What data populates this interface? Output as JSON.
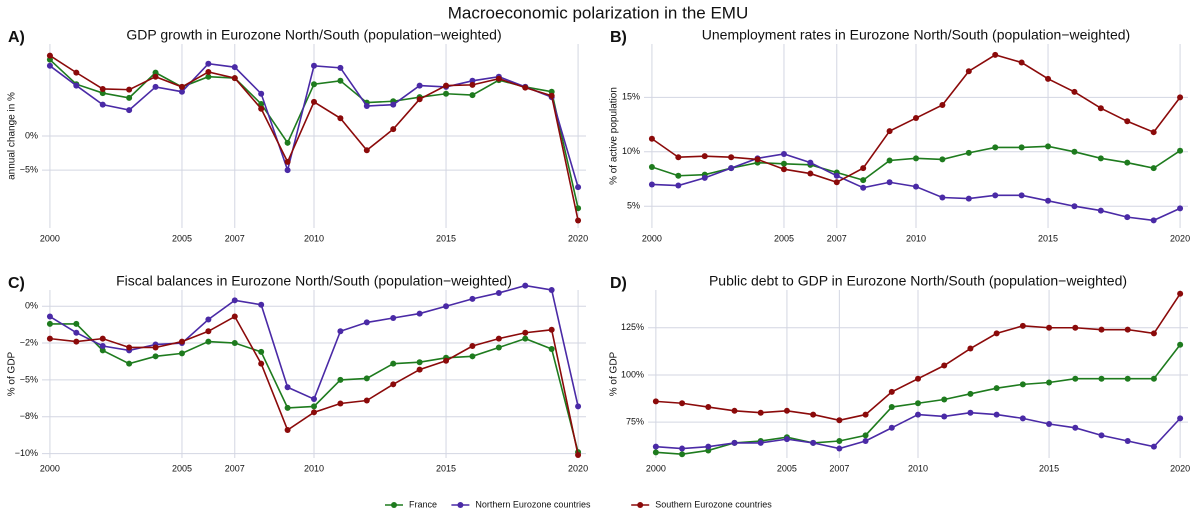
{
  "title": "Macroeconomic polarization in the EMU",
  "chart_data": [
    {
      "type": "line",
      "panel_label": "A)",
      "title": "GDP growth in Eurozone North/South (population−weighted)",
      "ylabel": "annual change in %",
      "x": [
        2000,
        2001,
        2002,
        2003,
        2004,
        2005,
        2006,
        2007,
        2008,
        2009,
        2010,
        2011,
        2012,
        2013,
        2014,
        2015,
        2016,
        2017,
        2018,
        2019,
        2020
      ],
      "xlim": [
        1999.7,
        2020.3
      ],
      "xticks": [
        2000,
        2005,
        2007,
        2010,
        2015,
        2020
      ],
      "ylim": [
        -13.5,
        13.5
      ],
      "yticks": [
        {
          "value": 0,
          "label": "0%"
        },
        {
          "value": -5,
          "label": "−5%"
        }
      ],
      "grid": true,
      "series": [
        {
          "name": "France",
          "color": "#1e7b1e",
          "values": [
            11.2,
            7.6,
            6.3,
            5.6,
            9.3,
            7.2,
            8.7,
            8.5,
            4.7,
            -1.0,
            7.6,
            8.1,
            4.9,
            5.1,
            5.7,
            6.2,
            6.0,
            8.2,
            7.2,
            6.5,
            -10.6
          ]
        },
        {
          "name": "Northern Eurozone countries",
          "color": "#4a2aa6",
          "values": [
            10.3,
            7.4,
            4.6,
            3.8,
            7.2,
            6.5,
            10.6,
            10.1,
            6.2,
            -5.0,
            10.3,
            10.0,
            4.4,
            4.6,
            7.4,
            7.2,
            8.1,
            8.7,
            7.2,
            5.7,
            -7.5
          ]
        },
        {
          "name": "Southern Eurozone countries",
          "color": "#8b0a0a",
          "values": [
            11.8,
            9.3,
            6.9,
            6.8,
            8.7,
            7.2,
            9.4,
            8.5,
            4.0,
            -3.8,
            5.0,
            2.6,
            -2.1,
            1.0,
            5.4,
            7.4,
            7.5,
            8.4,
            7.1,
            5.9,
            -12.4
          ]
        }
      ]
    },
    {
      "type": "line",
      "panel_label": "B)",
      "title": "Unemployment rates in Eurozone North/South (population−weighted)",
      "ylabel": "% of active population",
      "x": [
        2000,
        2001,
        2002,
        2003,
        2004,
        2005,
        2006,
        2007,
        2008,
        2009,
        2010,
        2011,
        2012,
        2013,
        2014,
        2015,
        2016,
        2017,
        2018,
        2019,
        2020
      ],
      "xlim": [
        1999.7,
        2020.3
      ],
      "xticks": [
        2000,
        2005,
        2007,
        2010,
        2015,
        2020
      ],
      "ylim": [
        3,
        19.9
      ],
      "yticks": [
        {
          "value": 5,
          "label": "5%"
        },
        {
          "value": 10,
          "label": "10%"
        },
        {
          "value": 15,
          "label": "15%"
        }
      ],
      "grid": true,
      "series": [
        {
          "name": "France",
          "color": "#1e7b1e",
          "values": [
            8.6,
            7.8,
            7.9,
            8.5,
            9.0,
            8.9,
            8.8,
            8.1,
            7.4,
            9.2,
            9.4,
            9.3,
            9.9,
            10.4,
            10.4,
            10.5,
            10.0,
            9.4,
            9.0,
            8.5,
            10.1
          ]
        },
        {
          "name": "Northern Eurozone countries",
          "color": "#4a2aa6",
          "values": [
            7.0,
            6.9,
            7.6,
            8.5,
            9.4,
            9.8,
            9.0,
            7.8,
            6.7,
            7.2,
            6.8,
            5.8,
            5.7,
            6.0,
            6.0,
            5.5,
            5.0,
            4.6,
            4.0,
            3.7,
            4.8
          ]
        },
        {
          "name": "Southern Eurozone countries",
          "color": "#8b0a0a",
          "values": [
            11.2,
            9.5,
            9.6,
            9.5,
            9.3,
            8.4,
            8.0,
            7.2,
            8.5,
            11.9,
            13.1,
            14.3,
            17.4,
            18.9,
            18.2,
            16.7,
            15.5,
            14.0,
            12.8,
            11.8,
            15.0
          ]
        }
      ]
    },
    {
      "type": "line",
      "panel_label": "C)",
      "title": "Fiscal balances in Eurozone North/South (population−weighted)",
      "ylabel": "% of GDP",
      "x": [
        2000,
        2001,
        2002,
        2003,
        2004,
        2005,
        2006,
        2007,
        2008,
        2009,
        2010,
        2011,
        2012,
        2013,
        2014,
        2015,
        2016,
        2017,
        2018,
        2019,
        2020
      ],
      "xlim": [
        1999.7,
        2020.3
      ],
      "xticks": [
        2000,
        2005,
        2007,
        2010,
        2015,
        2020
      ],
      "ylim": [
        -10.3,
        1.1
      ],
      "yticks": [
        {
          "value": 0,
          "label": "0%"
        },
        {
          "value": -2.5,
          "label": "−2%"
        },
        {
          "value": -5,
          "label": "−5%"
        },
        {
          "value": -7.5,
          "label": "−8%"
        },
        {
          "value": -10,
          "label": "−10%"
        }
      ],
      "grid": true,
      "series": [
        {
          "name": "France",
          "color": "#1e7b1e",
          "values": [
            -1.2,
            -1.2,
            -3.0,
            -3.9,
            -3.4,
            -3.2,
            -2.4,
            -2.5,
            -3.1,
            -6.9,
            -6.8,
            -5.0,
            -4.9,
            -3.9,
            -3.8,
            -3.5,
            -3.4,
            -2.8,
            -2.2,
            -2.9,
            -9.9
          ]
        },
        {
          "name": "Northern Eurozone countries",
          "color": "#4a2aa6",
          "values": [
            -0.7,
            -1.8,
            -2.7,
            -3.0,
            -2.6,
            -2.5,
            -0.9,
            0.4,
            0.1,
            -5.5,
            -6.3,
            -1.7,
            -1.1,
            -0.8,
            -0.5,
            0,
            0.5,
            0.9,
            1.4,
            1.1,
            -6.8
          ]
        },
        {
          "name": "Southern Eurozone countries",
          "color": "#8b0a0a",
          "values": [
            -2.2,
            -2.4,
            -2.2,
            -2.8,
            -2.8,
            -2.4,
            -1.7,
            -0.7,
            -3.9,
            -8.4,
            -7.2,
            -6.6,
            -6.4,
            -5.3,
            -4.3,
            -3.7,
            -2.7,
            -2.2,
            -1.8,
            -1.6,
            -10.1
          ]
        }
      ]
    },
    {
      "type": "line",
      "panel_label": "D)",
      "title": "Public debt to GDP in Eurozone North/South (population−weighted)",
      "ylabel": "% of GDP",
      "x": [
        2000,
        2001,
        2002,
        2003,
        2004,
        2005,
        2006,
        2007,
        2008,
        2009,
        2010,
        2011,
        2012,
        2013,
        2014,
        2015,
        2016,
        2017,
        2018,
        2019,
        2020
      ],
      "xlim": [
        1999.7,
        2020.3
      ],
      "xticks": [
        2000,
        2005,
        2007,
        2010,
        2015,
        2020
      ],
      "ylim": [
        56,
        145
      ],
      "yticks": [
        {
          "value": 75,
          "label": "75%"
        },
        {
          "value": 100,
          "label": "100%"
        },
        {
          "value": 125,
          "label": "125%"
        }
      ],
      "grid": true,
      "series": [
        {
          "name": "France",
          "color": "#1e7b1e",
          "values": [
            59,
            58,
            60,
            64,
            65,
            67,
            64,
            65,
            68,
            83,
            85,
            87,
            90,
            93,
            95,
            96,
            98,
            98,
            98,
            98,
            116
          ]
        },
        {
          "name": "Northern Eurozone countries",
          "color": "#4a2aa6",
          "values": [
            62,
            61,
            62,
            64,
            64,
            66,
            64,
            61,
            65,
            72,
            79,
            78,
            80,
            79,
            77,
            74,
            72,
            68,
            65,
            62,
            77
          ]
        },
        {
          "name": "Southern Eurozone countries",
          "color": "#8b0a0a",
          "values": [
            86,
            85,
            83,
            81,
            80,
            81,
            79,
            76,
            79,
            91,
            98,
            105,
            114,
            122,
            126,
            125,
            125,
            124,
            124,
            122,
            143
          ]
        }
      ]
    }
  ]
}
